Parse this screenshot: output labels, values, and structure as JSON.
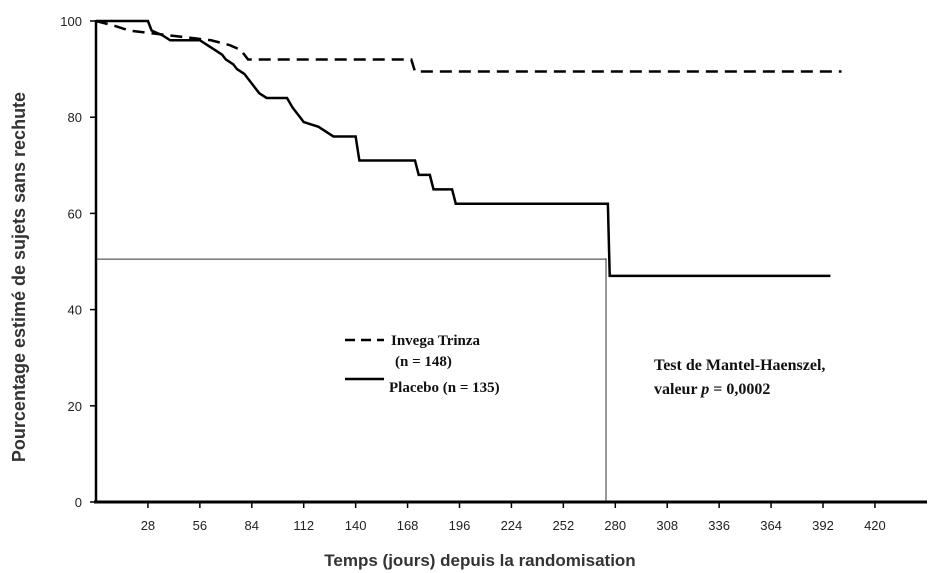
{
  "chart_data": {
    "type": "line",
    "xlabel": "Temps (jours) depuis la randomisation",
    "ylabel": "Pourcentage estimé de sujets sans rechute",
    "xlim": [
      0,
      450
    ],
    "ylim": [
      0,
      100
    ],
    "x_ticks": [
      "28",
      "56",
      "84",
      "112",
      "140",
      "168",
      "196",
      "224",
      "252",
      "280",
      "308",
      "336",
      "364",
      "392",
      "420"
    ],
    "y_ticks": [
      "0",
      "20",
      "40",
      "60",
      "80",
      "100"
    ],
    "legend_position": "center-left",
    "series": [
      {
        "name": "Invega Trinza",
        "name_line2": "(n = 148)",
        "style": "dashed",
        "color": "#000000",
        "points": [
          [
            0,
            100
          ],
          [
            10,
            99
          ],
          [
            18,
            98
          ],
          [
            40,
            97
          ],
          [
            62,
            96
          ],
          [
            72,
            95
          ],
          [
            78,
            94
          ],
          [
            82,
            92
          ],
          [
            170,
            92
          ],
          [
            172,
            89.5
          ],
          [
            402,
            89.5
          ]
        ]
      },
      {
        "name": "Placebo (n = 135)",
        "style": "solid",
        "color": "#000000",
        "points": [
          [
            0,
            100
          ],
          [
            28,
            100
          ],
          [
            30,
            98
          ],
          [
            36,
            97
          ],
          [
            40,
            96
          ],
          [
            56,
            96
          ],
          [
            60,
            95
          ],
          [
            64,
            94
          ],
          [
            68,
            93
          ],
          [
            70,
            92
          ],
          [
            74,
            91
          ],
          [
            76,
            90
          ],
          [
            80,
            89
          ],
          [
            82,
            88
          ],
          [
            84,
            87
          ],
          [
            86,
            86
          ],
          [
            88,
            85
          ],
          [
            92,
            84
          ],
          [
            103,
            84
          ],
          [
            106,
            82
          ],
          [
            108,
            81
          ],
          [
            112,
            79
          ],
          [
            120,
            78
          ],
          [
            128,
            76
          ],
          [
            140,
            76
          ],
          [
            142,
            71
          ],
          [
            172,
            71
          ],
          [
            174,
            68
          ],
          [
            180,
            68
          ],
          [
            182,
            65
          ],
          [
            192,
            65
          ],
          [
            194,
            62
          ],
          [
            276,
            62
          ],
          [
            277,
            47
          ],
          [
            396,
            47
          ]
        ]
      }
    ],
    "median_reference": {
      "y": 50.5,
      "x_end": 275
    },
    "annotation_line1": "Test de Mantel-Haenszel,",
    "annotation_line2_prefix": "valeur ",
    "annotation_line2_p": "p",
    "annotation_line2_suffix": " = 0,0002"
  }
}
